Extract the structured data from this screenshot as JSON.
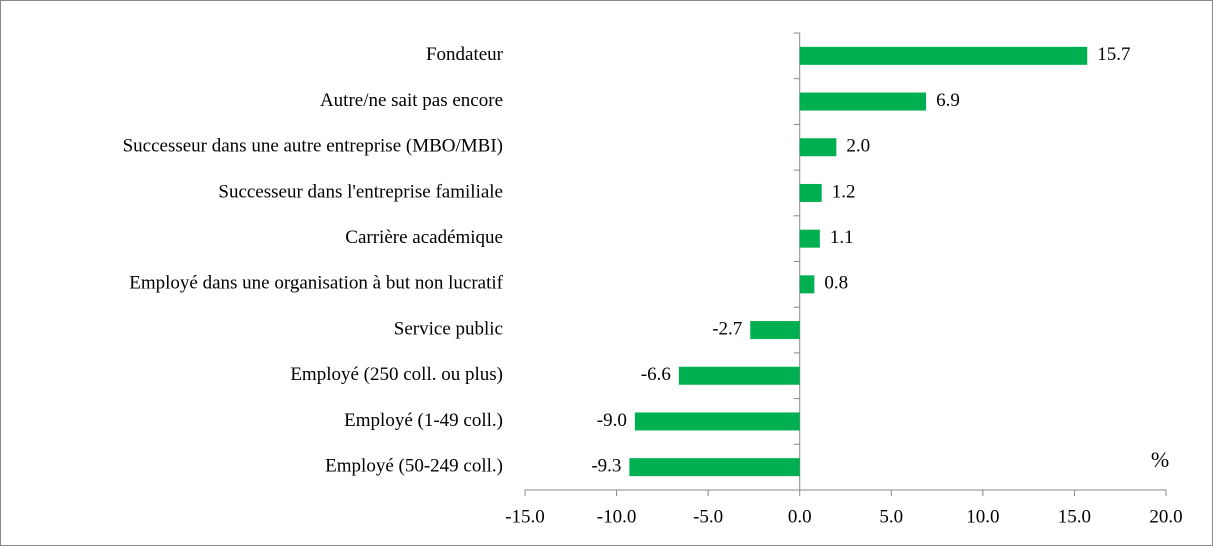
{
  "chart_data": {
    "type": "bar",
    "orientation": "horizontal",
    "categories": [
      "Fondateur",
      "Autre/ne sait pas encore",
      "Successeur dans une autre entreprise (MBO/MBI)",
      "Successeur dans l'entreprise familiale",
      "Carrière académique",
      "Employé dans une organisation à but non lucratif",
      "Service public",
      "Employé (250 coll. ou plus)",
      "Employé (1-49 coll.)",
      "Employé (50-249 coll.)"
    ],
    "values": [
      15.7,
      6.9,
      2.0,
      1.2,
      1.1,
      0.8,
      -2.7,
      -6.6,
      -9.0,
      -9.3
    ],
    "value_labels": [
      "15.7",
      "6.9",
      "2.0",
      "1.2",
      "1.1",
      "0.8",
      "-2.7",
      "-6.6",
      "-9.0",
      "-9.3"
    ],
    "color": "#00b050",
    "xlim": [
      -15,
      20
    ],
    "xticks": [
      {
        "value": -15,
        "label": "-15.0"
      },
      {
        "value": -10,
        "label": "-10.0"
      },
      {
        "value": -5,
        "label": "-5.0"
      },
      {
        "value": 0,
        "label": "0.0"
      },
      {
        "value": 5,
        "label": "5.0"
      },
      {
        "value": 10,
        "label": "10.0"
      },
      {
        "value": 15,
        "label": "15.0"
      },
      {
        "value": 20,
        "label": "20.0"
      }
    ],
    "unit_label": "%",
    "grid": false
  }
}
